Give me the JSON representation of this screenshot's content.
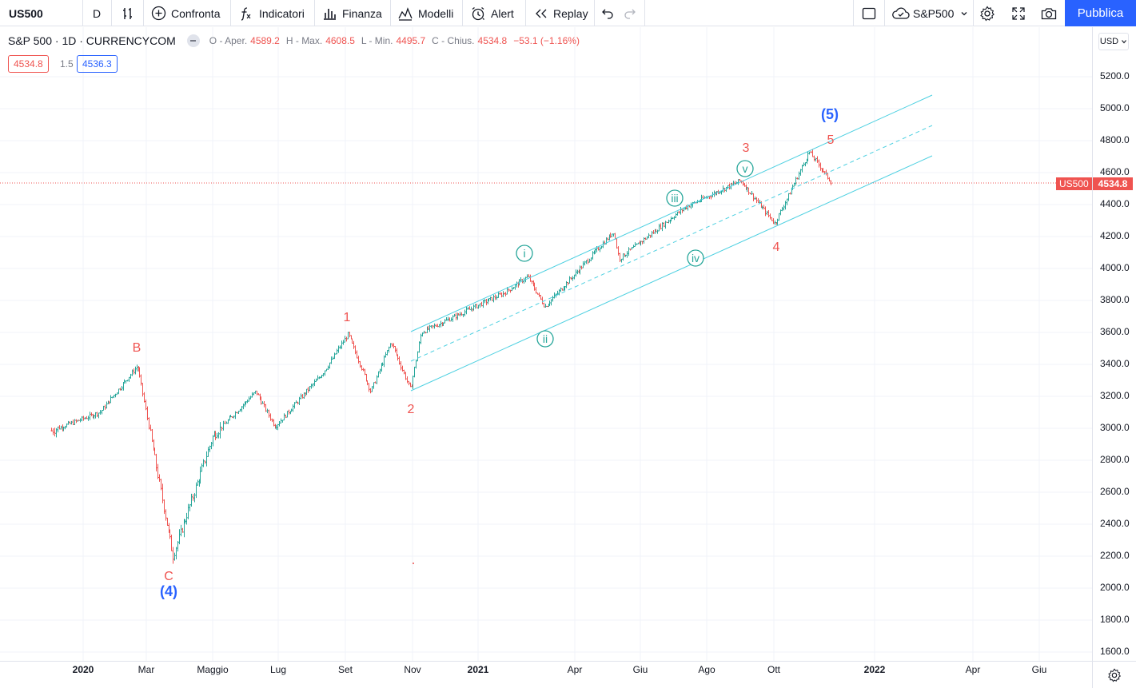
{
  "toolbar": {
    "symbol": "US500",
    "interval": "D",
    "compare_label": "Confronta",
    "indicators_label": "Indicatori",
    "financials_label": "Finanza",
    "templates_label": "Modelli",
    "alert_label": "Alert",
    "replay_label": "Replay",
    "layout_name": "S&P500",
    "publish_label": "Pubblica"
  },
  "legend": {
    "title": "S&P 500 · 1D · CURRENCYCOM",
    "open_label": "O - Aper.",
    "open": "4589.2",
    "high_label": "H - Max.",
    "high": "4608.5",
    "low_label": "L - Min.",
    "low": "4495.7",
    "close_label": "C - Chius.",
    "close": "4534.8",
    "change": "−53.1 (−1.16%)"
  },
  "trade": {
    "sell": "4534.8",
    "spread": "1.5",
    "buy": "4536.3"
  },
  "currency": "USD",
  "price_axis": {
    "ticks": [
      "5200.0",
      "5000.0",
      "4800.0",
      "4600.0",
      "4400.0",
      "4200.0",
      "4000.0",
      "3800.0",
      "3600.0",
      "3400.0",
      "3200.0",
      "3000.0",
      "2800.0",
      "2600.0",
      "2400.0",
      "2200.0",
      "2000.0",
      "1800.0",
      "1600.0"
    ],
    "last_symbol": "US500",
    "last_price": "4534.8"
  },
  "time_axis": [
    {
      "label": "2020",
      "bold": true
    },
    {
      "label": "Mar",
      "bold": false
    },
    {
      "label": "Maggio",
      "bold": false
    },
    {
      "label": "Lug",
      "bold": false
    },
    {
      "label": "Set",
      "bold": false
    },
    {
      "label": "Nov",
      "bold": false
    },
    {
      "label": "2021",
      "bold": true
    },
    {
      "label": "Apr",
      "bold": false
    },
    {
      "label": "Giu",
      "bold": false
    },
    {
      "label": "Ago",
      "bold": false
    },
    {
      "label": "Ott",
      "bold": false
    },
    {
      "label": "2022",
      "bold": true
    },
    {
      "label": "Apr",
      "bold": false
    },
    {
      "label": "Giu",
      "bold": false
    }
  ],
  "annotations": {
    "red_waves": [
      "B",
      "C",
      "1",
      "2",
      "3",
      "4",
      "5"
    ],
    "blue_waves": [
      "(4)",
      "(5)"
    ],
    "teal_waves": [
      "i",
      "ii",
      "iii",
      "iv",
      "v"
    ]
  },
  "chart_data": {
    "type": "candlestick",
    "ylim": [
      1600,
      5200
    ],
    "anchors": [
      {
        "date": "2019-12-01",
        "price": 2985
      },
      {
        "date": "2020-01-15",
        "price": 3100
      },
      {
        "date": "2020-02-19",
        "price": 3390
      },
      {
        "date": "2020-03-23",
        "price": 2200
      },
      {
        "date": "2020-04-29",
        "price": 2950
      },
      {
        "date": "2020-06-08",
        "price": 3230
      },
      {
        "date": "2020-06-26",
        "price": 3010
      },
      {
        "date": "2020-08-10",
        "price": 3350
      },
      {
        "date": "2020-09-02",
        "price": 3590
      },
      {
        "date": "2020-09-23",
        "price": 3230
      },
      {
        "date": "2020-10-12",
        "price": 3540
      },
      {
        "date": "2020-10-30",
        "price": 3240
      },
      {
        "date": "2020-11-09",
        "price": 3600
      },
      {
        "date": "2021-01-26",
        "price": 3850
      },
      {
        "date": "2021-02-16",
        "price": 3950
      },
      {
        "date": "2021-03-04",
        "price": 3760
      },
      {
        "date": "2021-05-07",
        "price": 4230
      },
      {
        "date": "2021-05-12",
        "price": 4060
      },
      {
        "date": "2021-07-12",
        "price": 4380
      },
      {
        "date": "2021-09-02",
        "price": 4550
      },
      {
        "date": "2021-10-04",
        "price": 4280
      },
      {
        "date": "2021-11-05",
        "price": 4730
      },
      {
        "date": "2021-11-26",
        "price": 4535
      }
    ]
  }
}
